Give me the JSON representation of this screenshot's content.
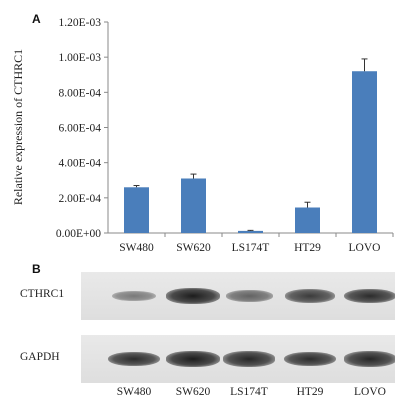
{
  "panel_a_letter": "A",
  "panel_b_letter": "B",
  "chart_data": {
    "type": "bar",
    "title": "",
    "xlabel": "",
    "ylabel": "Relative expression of CTHRC1",
    "categories": [
      "SW480",
      "SW620",
      "LS174T",
      "HT29",
      "LOVO"
    ],
    "values": [
      0.00026,
      0.00031,
      1.2e-05,
      0.000145,
      0.00092
    ],
    "errors": [
      1e-05,
      2.5e-05,
      3e-06,
      3e-05,
      7e-05
    ],
    "ylim": [
      0,
      0.0012
    ],
    "yticks": [
      0,
      0.0002,
      0.0004,
      0.0006,
      0.0008,
      0.001,
      0.0012
    ],
    "ytick_labels": [
      "0.00E+00",
      "2.00E-04",
      "4.00E-04",
      "6.00E-04",
      "8.00E-04",
      "1.00E-03",
      "1.20E-03"
    ],
    "bar_color": "#4a7ebb",
    "grid": false
  },
  "blot": {
    "rows": [
      {
        "label": "CTHRC1",
        "intensities": [
          0.35,
          0.95,
          0.5,
          0.75,
          0.85
        ]
      },
      {
        "label": "GAPDH",
        "intensities": [
          0.85,
          0.95,
          0.88,
          0.85,
          0.88
        ]
      }
    ],
    "lane_labels": [
      "SW480",
      "SW620",
      "LS174T",
      "HT29",
      "LOVO"
    ]
  }
}
